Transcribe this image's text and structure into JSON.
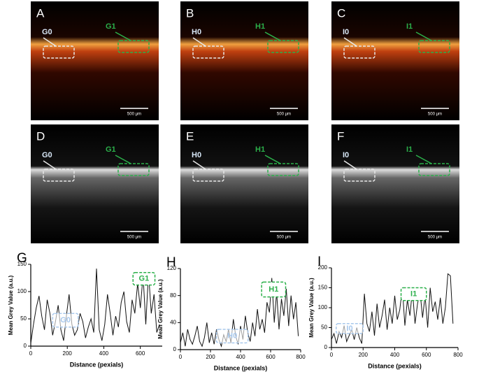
{
  "panels": [
    {
      "letter": "A",
      "roi_left": "G0",
      "roi_right": "G1",
      "scale": "500 μm"
    },
    {
      "letter": "B",
      "roi_left": "H0",
      "roi_right": "H1",
      "scale": "500 μm"
    },
    {
      "letter": "C",
      "roi_left": "I0",
      "roi_right": "I1",
      "scale": "500 μm"
    },
    {
      "letter": "D",
      "roi_left": "G0",
      "roi_right": "G1",
      "scale": "500 μm"
    },
    {
      "letter": "E",
      "roi_left": "H0",
      "roi_right": "H1",
      "scale": "500 μm"
    },
    {
      "letter": "F",
      "roi_left": "I0",
      "roi_right": "I1",
      "scale": "500 μm"
    }
  ],
  "chart_data": [
    {
      "type": "line",
      "title": "G",
      "xlabel": "Distance (pexials)",
      "ylabel": "Mean Grey Value (a.u.)",
      "xlim": [
        0,
        720
      ],
      "xticks": [
        0,
        200,
        400,
        600
      ],
      "ylim": [
        0,
        150
      ],
      "yticks": [
        0,
        50,
        100,
        150
      ],
      "color": "#111111",
      "x": [
        0,
        15,
        30,
        45,
        60,
        75,
        90,
        105,
        120,
        135,
        150,
        165,
        180,
        195,
        210,
        225,
        240,
        255,
        270,
        285,
        300,
        315,
        330,
        345,
        360,
        375,
        390,
        405,
        420,
        435,
        450,
        465,
        480,
        495,
        510,
        525,
        540,
        555,
        570,
        585,
        600,
        615,
        630,
        645,
        660,
        675,
        690,
        705
      ],
      "values": [
        5,
        40,
        70,
        92,
        55,
        30,
        85,
        60,
        20,
        45,
        75,
        30,
        10,
        55,
        95,
        40,
        20,
        30,
        60,
        45,
        15,
        35,
        50,
        25,
        142,
        30,
        10,
        40,
        95,
        60,
        20,
        55,
        35,
        80,
        100,
        45,
        25,
        85,
        60,
        115,
        70,
        130,
        40,
        135,
        60,
        95,
        25,
        40
      ],
      "annotations": [
        {
          "text": "G0",
          "color": "#a8c8ec"
        },
        {
          "text": "G1",
          "color": "#2bb04a"
        }
      ]
    },
    {
      "type": "line",
      "title": "H",
      "xlabel": "Distance (pexials)",
      "ylabel": "Mean Grey Value (a.u.)",
      "xlim": [
        0,
        800
      ],
      "xticks": [
        0,
        200,
        400,
        600,
        800
      ],
      "ylim": [
        0,
        120
      ],
      "yticks": [
        0,
        40,
        80,
        120
      ],
      "color": "#111111",
      "x": [
        0,
        16,
        32,
        48,
        64,
        80,
        96,
        112,
        128,
        144,
        160,
        176,
        192,
        208,
        224,
        240,
        256,
        272,
        288,
        304,
        320,
        336,
        352,
        368,
        384,
        400,
        416,
        432,
        448,
        464,
        480,
        496,
        512,
        528,
        544,
        560,
        576,
        592,
        608,
        624,
        640,
        656,
        672,
        688,
        704,
        720,
        736,
        752,
        768,
        784
      ],
      "values": [
        10,
        25,
        5,
        30,
        15,
        8,
        20,
        35,
        12,
        5,
        18,
        40,
        10,
        25,
        8,
        30,
        15,
        5,
        22,
        12,
        30,
        10,
        45,
        20,
        8,
        35,
        15,
        50,
        25,
        12,
        40,
        20,
        60,
        30,
        45,
        25,
        70,
        55,
        106,
        40,
        85,
        30,
        75,
        50,
        90,
        35,
        80,
        45,
        70,
        20
      ],
      "annotations": [
        {
          "text": "H0",
          "color": "#a8c8ec"
        },
        {
          "text": "H1",
          "color": "#2bb04a"
        }
      ]
    },
    {
      "type": "line",
      "title": "I",
      "xlabel": "Distance (pexials)",
      "ylabel": "Mean Grey Value (a.u.)",
      "xlim": [
        0,
        800
      ],
      "xticks": [
        0,
        200,
        400,
        600,
        800
      ],
      "ylim": [
        0,
        200
      ],
      "yticks": [
        0,
        50,
        100,
        150,
        200
      ],
      "color": "#111111",
      "x": [
        0,
        16,
        32,
        48,
        64,
        80,
        96,
        112,
        128,
        144,
        160,
        176,
        192,
        208,
        224,
        240,
        256,
        272,
        288,
        304,
        320,
        336,
        352,
        368,
        384,
        400,
        416,
        432,
        448,
        464,
        480,
        496,
        512,
        528,
        544,
        560,
        576,
        592,
        608,
        624,
        640,
        656,
        672,
        688,
        704,
        720,
        736,
        752,
        768
      ],
      "values": [
        20,
        35,
        10,
        40,
        25,
        55,
        15,
        30,
        45,
        20,
        50,
        25,
        10,
        135,
        60,
        40,
        90,
        30,
        110,
        50,
        80,
        120,
        45,
        100,
        60,
        130,
        70,
        95,
        150,
        55,
        120,
        80,
        145,
        60,
        110,
        140,
        75,
        130,
        50,
        150,
        90,
        115,
        70,
        125,
        60,
        100,
        185,
        180,
        60
      ],
      "annotations": [
        {
          "text": "I0",
          "color": "#a8c8ec"
        },
        {
          "text": "I1",
          "color": "#2bb04a"
        }
      ]
    }
  ]
}
